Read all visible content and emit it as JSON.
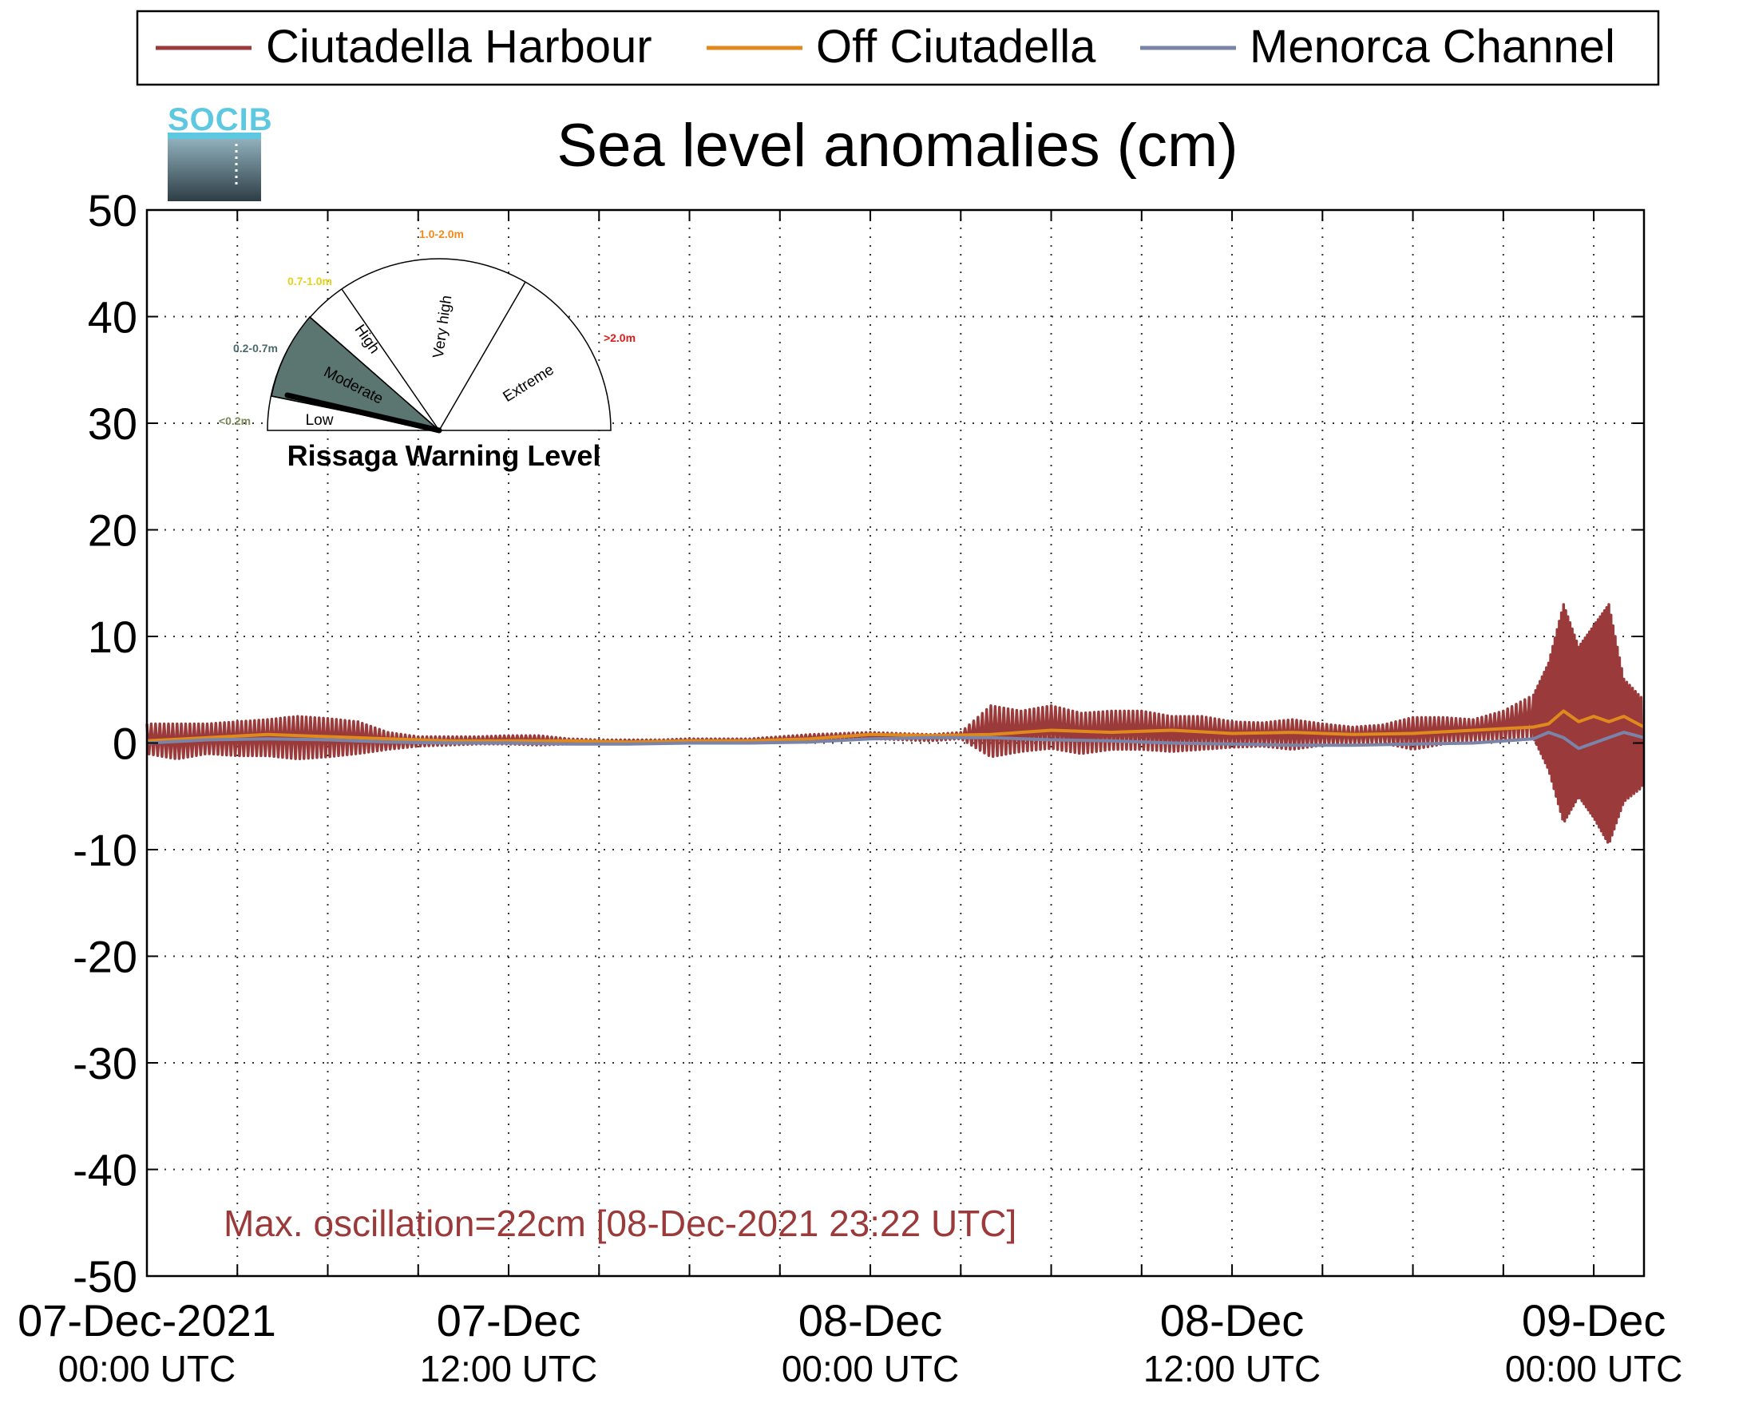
{
  "legend": {
    "entries": [
      {
        "label": "Ciutadella Harbour",
        "color": "#9a3a3a"
      },
      {
        "label": "Off Ciutadella",
        "color": "#e08a1e"
      },
      {
        "label": "Menorca Channel",
        "color": "#7a84a8"
      }
    ]
  },
  "logo": {
    "text": "SOCIB",
    "color": "#5ec8e0"
  },
  "gauge": {
    "title": "Rissaga Warning Level",
    "current_level": "Low",
    "sectors": [
      {
        "label": "Low",
        "range": "<0.2m",
        "range_color": "#7a8a5a"
      },
      {
        "label": "Moderate",
        "range": "0.2-0.7m",
        "range_color": "#4a6a6a",
        "fill": "#5b7570"
      },
      {
        "label": "High",
        "range": "0.7-1.0m",
        "range_color": "#e6d21a"
      },
      {
        "label": "Very high",
        "range": "1.0-2.0m",
        "range_color": "#f08a1a"
      },
      {
        "label": "Extreme",
        "range": ">2.0m",
        "range_color": "#e01a1a"
      }
    ]
  },
  "annotation": {
    "text": "Max. oscillation=22cm [08-Dec-2021 23:22 UTC]",
    "color": "#9a3a3a"
  },
  "chart_data": {
    "type": "line",
    "title": "Sea level anomalies (cm)",
    "xlabel": "",
    "ylabel": "",
    "ylim": [
      -50,
      50
    ],
    "yticks": [
      50,
      40,
      30,
      20,
      10,
      0,
      -10,
      -20,
      -30,
      -40,
      -50
    ],
    "xlim": [
      "2021-12-07 00:00",
      "2021-12-09 01:40"
    ],
    "xtick_labels": [
      {
        "x": "2021-12-07 00:00",
        "line1": "07-Dec-2021",
        "line2": "00:00 UTC"
      },
      {
        "x": "2021-12-07 12:00",
        "line1": "07-Dec",
        "line2": "12:00 UTC"
      },
      {
        "x": "2021-12-08 00:00",
        "line1": "08-Dec",
        "line2": "00:00 UTC"
      },
      {
        "x": "2021-12-08 12:00",
        "line1": "08-Dec",
        "line2": "12:00 UTC"
      },
      {
        "x": "2021-12-09 00:00",
        "line1": "09-Dec",
        "line2": "00:00 UTC"
      }
    ],
    "grid": true,
    "legend_position": "top",
    "series": [
      {
        "name": "Ciutadella Harbour",
        "color": "#9a3a3a",
        "x": [
          "2021-12-07 00:00",
          "2021-12-07 01:00",
          "2021-12-07 02:00",
          "2021-12-07 03:00",
          "2021-12-07 04:00",
          "2021-12-07 05:00",
          "2021-12-07 06:00",
          "2021-12-07 07:00",
          "2021-12-07 08:00",
          "2021-12-07 09:00",
          "2021-12-07 10:00",
          "2021-12-07 11:00",
          "2021-12-07 12:00",
          "2021-12-07 13:00",
          "2021-12-07 14:00",
          "2021-12-07 15:00",
          "2021-12-07 16:00",
          "2021-12-07 17:00",
          "2021-12-07 18:00",
          "2021-12-07 19:00",
          "2021-12-07 20:00",
          "2021-12-07 21:00",
          "2021-12-07 22:00",
          "2021-12-07 23:00",
          "2021-12-08 00:00",
          "2021-12-08 01:00",
          "2021-12-08 02:00",
          "2021-12-08 03:00",
          "2021-12-08 04:00",
          "2021-12-08 05:00",
          "2021-12-08 06:00",
          "2021-12-08 07:00",
          "2021-12-08 08:00",
          "2021-12-08 09:00",
          "2021-12-08 10:00",
          "2021-12-08 11:00",
          "2021-12-08 12:00",
          "2021-12-08 13:00",
          "2021-12-08 14:00",
          "2021-12-08 15:00",
          "2021-12-08 16:00",
          "2021-12-08 17:00",
          "2021-12-08 18:00",
          "2021-12-08 19:00",
          "2021-12-08 20:00",
          "2021-12-08 21:00",
          "2021-12-08 22:00",
          "2021-12-08 22:30",
          "2021-12-08 23:00",
          "2021-12-08 23:30",
          "2021-12-09 00:00",
          "2021-12-09 00:30",
          "2021-12-09 01:00",
          "2021-12-09 01:40"
        ],
        "y_low": [
          -1.0,
          -1.5,
          -1.0,
          -1.2,
          -1.2,
          -1.5,
          -1.3,
          -1.0,
          -0.6,
          -0.3,
          -0.2,
          -0.1,
          -0.1,
          -0.2,
          -0.1,
          -0.1,
          0.0,
          0.0,
          0.1,
          0.1,
          0.1,
          0.1,
          0.1,
          0.3,
          0.4,
          0.3,
          0.2,
          0.4,
          -1.3,
          -0.8,
          -0.5,
          -1.0,
          -0.6,
          -0.6,
          -0.8,
          -0.6,
          -0.4,
          -0.3,
          -0.6,
          -0.2,
          -0.1,
          0.0,
          -0.6,
          -0.1,
          0.2,
          0.2,
          0.5,
          -2.5,
          -7.5,
          -5.0,
          -7.0,
          -9.5,
          -5.5,
          -4.0
        ],
        "y_high": [
          1.8,
          1.8,
          1.8,
          2.0,
          2.2,
          2.5,
          2.3,
          2.0,
          1.0,
          0.6,
          0.6,
          0.6,
          0.7,
          0.7,
          0.4,
          0.3,
          0.3,
          0.3,
          0.4,
          0.4,
          0.4,
          0.6,
          0.8,
          0.9,
          1.0,
          0.9,
          0.8,
          1.0,
          3.5,
          3.0,
          3.5,
          2.8,
          3.0,
          3.0,
          2.5,
          2.5,
          2.0,
          1.9,
          2.2,
          1.8,
          1.5,
          1.7,
          2.4,
          2.4,
          2.2,
          3.0,
          4.5,
          7.5,
          13.0,
          9.0,
          11.0,
          13.0,
          6.0,
          4.0
        ]
      },
      {
        "name": "Off Ciutadella",
        "color": "#e08a1e",
        "x": [
          "2021-12-07 00:00",
          "2021-12-07 02:00",
          "2021-12-07 04:00",
          "2021-12-07 06:00",
          "2021-12-07 08:00",
          "2021-12-07 10:00",
          "2021-12-07 12:00",
          "2021-12-07 14:00",
          "2021-12-07 16:00",
          "2021-12-07 18:00",
          "2021-12-07 20:00",
          "2021-12-07 22:00",
          "2021-12-08 00:00",
          "2021-12-08 02:00",
          "2021-12-08 04:00",
          "2021-12-08 06:00",
          "2021-12-08 08:00",
          "2021-12-08 10:00",
          "2021-12-08 12:00",
          "2021-12-08 14:00",
          "2021-12-08 16:00",
          "2021-12-08 18:00",
          "2021-12-08 20:00",
          "2021-12-08 22:00",
          "2021-12-08 22:30",
          "2021-12-08 23:00",
          "2021-12-08 23:30",
          "2021-12-09 00:00",
          "2021-12-09 00:30",
          "2021-12-09 01:00",
          "2021-12-09 01:40"
        ],
        "y": [
          0.2,
          0.5,
          0.8,
          0.6,
          0.4,
          0.2,
          0.2,
          0.2,
          0.1,
          0.2,
          0.2,
          0.4,
          0.8,
          0.7,
          0.8,
          1.2,
          1.0,
          1.2,
          0.9,
          1.0,
          0.8,
          0.9,
          1.2,
          1.5,
          1.8,
          3.0,
          2.0,
          2.5,
          2.0,
          2.5,
          1.5
        ]
      },
      {
        "name": "Menorca Channel",
        "color": "#7a84a8",
        "x": [
          "2021-12-07 00:00",
          "2021-12-07 02:00",
          "2021-12-07 04:00",
          "2021-12-07 06:00",
          "2021-12-07 08:00",
          "2021-12-07 10:00",
          "2021-12-07 12:00",
          "2021-12-07 14:00",
          "2021-12-07 16:00",
          "2021-12-07 18:00",
          "2021-12-07 20:00",
          "2021-12-07 22:00",
          "2021-12-08 00:00",
          "2021-12-08 02:00",
          "2021-12-08 04:00",
          "2021-12-08 06:00",
          "2021-12-08 08:00",
          "2021-12-08 10:00",
          "2021-12-08 12:00",
          "2021-12-08 14:00",
          "2021-12-08 16:00",
          "2021-12-08 18:00",
          "2021-12-08 20:00",
          "2021-12-08 22:00",
          "2021-12-08 22:30",
          "2021-12-08 23:00",
          "2021-12-08 23:30",
          "2021-12-09 00:00",
          "2021-12-09 00:30",
          "2021-12-09 01:00",
          "2021-12-09 01:40"
        ],
        "y": [
          0.0,
          0.3,
          0.4,
          0.3,
          0.1,
          0.0,
          0.0,
          -0.1,
          -0.1,
          0.0,
          0.0,
          0.1,
          0.4,
          0.5,
          0.5,
          0.3,
          0.2,
          0.0,
          -0.1,
          -0.2,
          -0.2,
          -0.1,
          0.0,
          0.4,
          1.0,
          0.5,
          -0.5,
          0.0,
          0.5,
          1.0,
          0.5
        ]
      }
    ]
  }
}
